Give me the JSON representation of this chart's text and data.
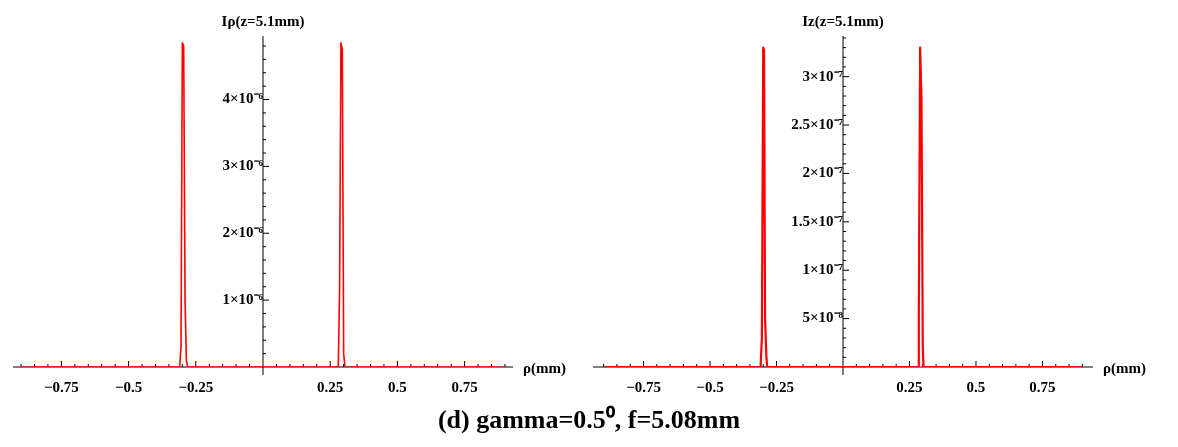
{
  "chart_data": [
    {
      "type": "line",
      "ylabel": "Iρ(z=5.1mm)",
      "xlabel": "ρ(mm)",
      "annotations": [
        "(d) gamma=0.5⁰, f=5.08mm"
      ],
      "xlim": [
        -0.93,
        0.93
      ],
      "ylim": [
        0,
        4.95e-06
      ],
      "xticks": [
        {
          "value": -0.9,
          "label": null
        },
        {
          "value": -0.85,
          "label": null
        },
        {
          "value": -0.8,
          "label": null
        },
        -0.75,
        {
          "value": -0.7,
          "label": null
        },
        {
          "value": -0.65,
          "label": null
        },
        {
          "value": -0.6,
          "label": null
        },
        {
          "value": -0.55,
          "label": null
        },
        -0.5,
        {
          "value": -0.45,
          "label": null
        },
        {
          "value": -0.4,
          "label": null
        },
        {
          "value": -0.35,
          "label": null
        },
        {
          "value": -0.3,
          "label": null
        },
        -0.25,
        {
          "value": -0.2,
          "label": null
        },
        {
          "value": -0.15,
          "label": null
        },
        {
          "value": -0.1,
          "label": null
        },
        {
          "value": -0.05,
          "label": null
        },
        {
          "value": 0.05,
          "label": null
        },
        {
          "value": 0.1,
          "label": null
        },
        {
          "value": 0.15,
          "label": null
        },
        {
          "value": 0.2,
          "label": null
        },
        0.25,
        {
          "value": 0.3,
          "label": null
        },
        {
          "value": 0.35,
          "label": null
        },
        {
          "value": 0.4,
          "label": null
        },
        {
          "value": 0.45,
          "label": null
        },
        0.5,
        {
          "value": 0.55,
          "label": null
        },
        {
          "value": 0.6,
          "label": null
        },
        {
          "value": 0.65,
          "label": null
        },
        {
          "value": 0.7,
          "label": null
        },
        0.75,
        {
          "value": 0.8,
          "label": null
        },
        {
          "value": 0.85,
          "label": null
        },
        {
          "value": 0.9,
          "label": null
        }
      ],
      "yticks": [
        {
          "value": 2e-07,
          "label": null
        },
        {
          "value": 4e-07,
          "label": null
        },
        {
          "value": 6e-07,
          "label": null
        },
        {
          "value": 8e-07,
          "label": null
        },
        {
          "value": 1e-06,
          "label": "1×10⁻⁶"
        },
        {
          "value": 1.2e-06,
          "label": null
        },
        {
          "value": 1.4e-06,
          "label": null
        },
        {
          "value": 1.6e-06,
          "label": null
        },
        {
          "value": 1.8e-06,
          "label": null
        },
        {
          "value": 2e-06,
          "label": "2×10⁻⁶"
        },
        {
          "value": 2.2e-06,
          "label": null
        },
        {
          "value": 2.4e-06,
          "label": null
        },
        {
          "value": 2.6e-06,
          "label": null
        },
        {
          "value": 2.8e-06,
          "label": null
        },
        {
          "value": 3e-06,
          "label": "3×10⁻⁶"
        },
        {
          "value": 3.2e-06,
          "label": null
        },
        {
          "value": 3.4e-06,
          "label": null
        },
        {
          "value": 3.6e-06,
          "label": null
        },
        {
          "value": 3.8e-06,
          "label": null
        },
        {
          "value": 4e-06,
          "label": "4×10⁻⁶"
        },
        {
          "value": 4.2e-06,
          "label": null
        },
        {
          "value": 4.4e-06,
          "label": null
        },
        {
          "value": 4.6e-06,
          "label": null
        },
        {
          "value": 4.8e-06,
          "label": null
        }
      ],
      "grid": false,
      "legend": false,
      "series": [
        {
          "color": "#ff0000",
          "x": [
            -0.9,
            -0.31,
            -0.305,
            -0.3,
            -0.295,
            -0.29,
            -0.285,
            -0.28,
            0.28,
            0.285,
            0.29,
            0.295,
            0.3,
            0.305,
            0.9
          ],
          "values": [
            0,
            0,
            3e-07,
            4.85e-06,
            4.8e-06,
            1e-06,
            1e-07,
            0,
            0,
            1.2e-06,
            4.85e-06,
            4.75e-06,
            2e-07,
            0,
            0
          ]
        }
      ]
    },
    {
      "type": "line",
      "ylabel": "Iz(z=5.1mm)",
      "xlabel": "ρ(mm)",
      "xlim": [
        -0.94,
        0.94
      ],
      "ylim": [
        0,
        3.42e-07
      ],
      "xticks": [
        {
          "value": -0.9,
          "label": null
        },
        {
          "value": -0.85,
          "label": null
        },
        {
          "value": -0.8,
          "label": null
        },
        -0.75,
        {
          "value": -0.7,
          "label": null
        },
        {
          "value": -0.65,
          "label": null
        },
        {
          "value": -0.6,
          "label": null
        },
        {
          "value": -0.55,
          "label": null
        },
        -0.5,
        {
          "value": -0.45,
          "label": null
        },
        {
          "value": -0.4,
          "label": null
        },
        {
          "value": -0.35,
          "label": null
        },
        {
          "value": -0.3,
          "label": null
        },
        -0.25,
        {
          "value": -0.2,
          "label": null
        },
        {
          "value": -0.15,
          "label": null
        },
        {
          "value": -0.1,
          "label": null
        },
        {
          "value": -0.05,
          "label": null
        },
        {
          "value": 0.05,
          "label": null
        },
        {
          "value": 0.1,
          "label": null
        },
        {
          "value": 0.15,
          "label": null
        },
        {
          "value": 0.2,
          "label": null
        },
        0.25,
        {
          "value": 0.3,
          "label": null
        },
        {
          "value": 0.35,
          "label": null
        },
        {
          "value": 0.4,
          "label": null
        },
        {
          "value": 0.45,
          "label": null
        },
        0.5,
        {
          "value": 0.55,
          "label": null
        },
        {
          "value": 0.6,
          "label": null
        },
        {
          "value": 0.65,
          "label": null
        },
        {
          "value": 0.7,
          "label": null
        },
        0.75,
        {
          "value": 0.8,
          "label": null
        },
        {
          "value": 0.85,
          "label": null
        },
        {
          "value": 0.9,
          "label": null
        }
      ],
      "yticks": [
        {
          "value": 1e-08,
          "label": null
        },
        {
          "value": 2e-08,
          "label": null
        },
        {
          "value": 3e-08,
          "label": null
        },
        {
          "value": 4e-08,
          "label": null
        },
        {
          "value": 5e-08,
          "label": "5×10⁻⁸"
        },
        {
          "value": 6e-08,
          "label": null
        },
        {
          "value": 7e-08,
          "label": null
        },
        {
          "value": 8e-08,
          "label": null
        },
        {
          "value": 9e-08,
          "label": null
        },
        {
          "value": 1e-07,
          "label": "1×10⁻⁷"
        },
        {
          "value": 1.1e-07,
          "label": null
        },
        {
          "value": 1.2e-07,
          "label": null
        },
        {
          "value": 1.3e-07,
          "label": null
        },
        {
          "value": 1.4e-07,
          "label": null
        },
        {
          "value": 1.5e-07,
          "label": "1.5×10⁻⁷"
        },
        {
          "value": 1.6e-07,
          "label": null
        },
        {
          "value": 1.7e-07,
          "label": null
        },
        {
          "value": 1.8e-07,
          "label": null
        },
        {
          "value": 1.9e-07,
          "label": null
        },
        {
          "value": 2e-07,
          "label": "2×10⁻⁷"
        },
        {
          "value": 2.1e-07,
          "label": null
        },
        {
          "value": 2.2e-07,
          "label": null
        },
        {
          "value": 2.3e-07,
          "label": null
        },
        {
          "value": 2.4e-07,
          "label": null
        },
        {
          "value": 2.5e-07,
          "label": "2.5×10⁻⁷"
        },
        {
          "value": 2.6e-07,
          "label": null
        },
        {
          "value": 2.7e-07,
          "label": null
        },
        {
          "value": 2.8e-07,
          "label": null
        },
        {
          "value": 2.9e-07,
          "label": null
        },
        {
          "value": 3e-07,
          "label": "3×10⁻⁷"
        },
        {
          "value": 3.1e-07,
          "label": null
        },
        {
          "value": 3.2e-07,
          "label": null
        },
        {
          "value": 3.3e-07,
          "label": null
        },
        {
          "value": 3.4e-07,
          "label": null
        }
      ],
      "grid": false,
      "legend": false,
      "series": [
        {
          "color": "#ff0000",
          "x": [
            -0.9,
            -0.31,
            -0.305,
            -0.3,
            -0.297,
            -0.293,
            -0.288,
            -0.285,
            0.282,
            0.285,
            0.29,
            0.295,
            0.3,
            0.303,
            0.9
          ],
          "values": [
            0,
            0,
            3e-08,
            3.3e-07,
            3.28e-07,
            5e-08,
            1e-08,
            0,
            0,
            5e-08,
            3.3e-07,
            2.8e-07,
            2e-08,
            0,
            0
          ]
        }
      ]
    }
  ]
}
